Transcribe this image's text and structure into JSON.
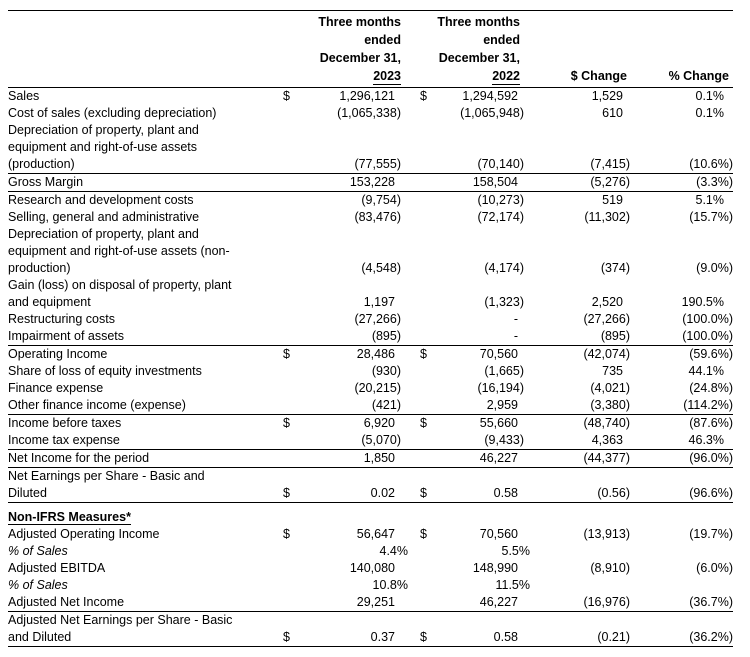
{
  "table": {
    "currency_symbol": "$",
    "columns": [
      {
        "id": "y2023",
        "lines": [
          "Three months",
          "ended",
          "December 31,"
        ],
        "year": "2023"
      },
      {
        "id": "y2022",
        "lines": [
          "Three months",
          "ended",
          "December 31,"
        ],
        "year": "2022"
      },
      {
        "id": "chg",
        "label": "$ Change"
      },
      {
        "id": "pct",
        "label": "% Change"
      }
    ],
    "rows": [
      {
        "label": "Sales",
        "usd": true,
        "y2023": "1,296,121",
        "y2022": "1,294,592",
        "chg": "1,529",
        "pct": "0.1%"
      },
      {
        "label": "Cost of sales (excluding depreciation)",
        "y2023": "(1,065,338)",
        "y2022": "(1,065,948)",
        "chg": "610",
        "pct": "0.1%"
      },
      {
        "label": "Depreciation of property, plant and\nequipment and right-of-use assets\n(production)",
        "y2023": "(77,555)",
        "y2022": "(70,140)",
        "chg": "(7,415)",
        "pct": "(10.6%)",
        "border_bottom": true
      },
      {
        "label": "Gross Margin",
        "y2023": "153,228",
        "y2022": "158,504",
        "chg": "(5,276)",
        "pct": "(3.3%)",
        "border_bottom": true
      },
      {
        "label": "Research and development costs",
        "y2023": "(9,754)",
        "y2022": "(10,273)",
        "chg": "519",
        "pct": "5.1%"
      },
      {
        "label": "Selling, general and administrative",
        "y2023": "(83,476)",
        "y2022": "(72,174)",
        "chg": "(11,302)",
        "pct": "(15.7%)"
      },
      {
        "label": "Depreciation of property, plant and\nequipment and right-of-use assets (non-\nproduction)",
        "y2023": "(4,548)",
        "y2022": "(4,174)",
        "chg": "(374)",
        "pct": "(9.0%)"
      },
      {
        "label": "Gain (loss) on disposal of property, plant\nand equipment",
        "y2023": "1,197",
        "y2022": "(1,323)",
        "chg": "2,520",
        "pct": "190.5%"
      },
      {
        "label": "Restructuring costs",
        "y2023": "(27,266)",
        "y2022": "-",
        "chg": "(27,266)",
        "pct": "(100.0%)"
      },
      {
        "label": "Impairment of assets",
        "y2023": "(895)",
        "y2022": "-",
        "chg": "(895)",
        "pct": "(100.0%)",
        "border_bottom": true
      },
      {
        "label": "Operating Income",
        "usd": true,
        "y2023": "28,486",
        "y2022": "70,560",
        "chg": "(42,074)",
        "pct": "(59.6%)"
      },
      {
        "label": "Share of loss of equity investments",
        "y2023": "(930)",
        "y2022": "(1,665)",
        "chg": "735",
        "pct": "44.1%"
      },
      {
        "label": "Finance expense",
        "y2023": "(20,215)",
        "y2022": "(16,194)",
        "chg": "(4,021)",
        "pct": "(24.8%)"
      },
      {
        "label": "Other finance income (expense)",
        "y2023": "(421)",
        "y2022": "2,959",
        "chg": "(3,380)",
        "pct": "(114.2%)",
        "border_bottom": true
      },
      {
        "label": "Income before taxes",
        "usd": true,
        "y2023": "6,920",
        "y2022": "55,660",
        "chg": "(48,740)",
        "pct": "(87.6%)"
      },
      {
        "label": "Income tax expense",
        "y2023": "(5,070)",
        "y2022": "(9,433)",
        "chg": "4,363",
        "pct": "46.3%",
        "border_bottom": true
      },
      {
        "label": "Net Income for the period",
        "y2023": "1,850",
        "y2022": "46,227",
        "chg": "(44,377)",
        "pct": "(96.0%)",
        "border_bottom": true
      },
      {
        "label": "Net Earnings per Share - Basic and\nDiluted",
        "usd": true,
        "y2023": "0.02",
        "y2022": "0.58",
        "chg": "(0.56)",
        "pct": "(96.6%)",
        "border_bottom": true
      },
      {
        "label": "Non-IFRS Measures*",
        "section_header": true
      },
      {
        "label": "Adjusted Operating Income",
        "usd": true,
        "y2023": "56,647",
        "y2022": "70,560",
        "chg": "(13,913)",
        "pct": "(19.7%)"
      },
      {
        "label": "% of Sales",
        "italic": true,
        "y2023": "4.4%",
        "y2022": "5.5%",
        "chg": "",
        "pct": ""
      },
      {
        "label": "Adjusted EBITDA",
        "y2023": "140,080",
        "y2022": "148,990",
        "chg": "(8,910)",
        "pct": "(6.0%)"
      },
      {
        "label": "% of Sales",
        "italic": true,
        "y2023": "10.8%",
        "y2022": "11.5%",
        "chg": "",
        "pct": ""
      },
      {
        "label": "Adjusted Net Income",
        "y2023": "29,251",
        "y2022": "46,227",
        "chg": "(16,976)",
        "pct": "(36.7%)",
        "border_bottom": true
      },
      {
        "label": "Adjusted Net Earnings per Share - Basic\nand Diluted",
        "usd": true,
        "y2023": "0.37",
        "y2022": "0.58",
        "chg": "(0.21)",
        "pct": "(36.2%)",
        "border_bottom": true
      }
    ]
  }
}
